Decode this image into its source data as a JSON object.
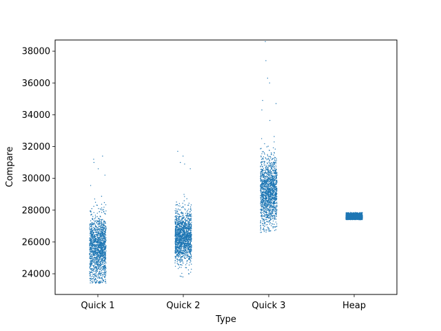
{
  "chart_data": {
    "type": "scatter",
    "subtype": "strip",
    "xlabel": "Type",
    "ylabel": "Compare",
    "categories": [
      "Quick 1",
      "Quick 2",
      "Quick 3",
      "Heap"
    ],
    "ylim": [
      22700,
      38700
    ],
    "yticks": [
      24000,
      26000,
      28000,
      30000,
      32000,
      34000,
      36000,
      38000
    ],
    "ytick_labels": [
      "24000",
      "26000",
      "28000",
      "30000",
      "32000",
      "34000",
      "36000",
      "38000"
    ],
    "grid": false,
    "legend": "none",
    "color": "#1f77b4",
    "series": [
      {
        "category": "Quick 1",
        "points_per_category": 1500,
        "median": 25600,
        "q1": 25000,
        "q3": 26400,
        "min": 23400,
        "max": 31400,
        "outliers": [
          30200,
          30600,
          31000,
          31200,
          31400,
          23450,
          23600
        ]
      },
      {
        "category": "Quick 2",
        "points_per_category": 1500,
        "median": 26300,
        "q1": 25800,
        "q3": 26900,
        "min": 23800,
        "max": 31700,
        "outliers": [
          31700,
          31400,
          31000,
          30900,
          30600,
          23800,
          24000
        ]
      },
      {
        "category": "Quick 3",
        "points_per_category": 1500,
        "median": 29200,
        "q1": 28600,
        "q3": 30000,
        "min": 26600,
        "max": 38600,
        "outliers": [
          38600,
          37400,
          36300,
          36000,
          34900,
          34700,
          34300,
          26600,
          26700
        ]
      },
      {
        "category": "Heap",
        "points_per_category": 1500,
        "median": 27600,
        "q1": 27520,
        "q3": 27680,
        "min": 27400,
        "max": 27850,
        "outliers": []
      }
    ]
  }
}
